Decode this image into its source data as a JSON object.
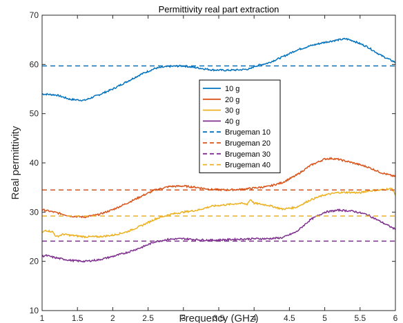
{
  "chart_data": {
    "type": "line",
    "title": "Permittivity real part extraction",
    "xlabel": "Frequency (GHz)",
    "ylabel": "Real permittivity",
    "xlim": [
      1,
      6
    ],
    "ylim": [
      10,
      70
    ],
    "xticks": [
      "1",
      "1.5",
      "2",
      "2.5",
      "3",
      "3.5",
      "4",
      "4.5",
      "5",
      "5.5",
      "6"
    ],
    "yticks": [
      "10",
      "20",
      "30",
      "40",
      "50",
      "60",
      "70"
    ],
    "grid": false,
    "legend_position": "center",
    "series": [
      {
        "name": "10 g",
        "style": "solid",
        "color": "#0072BD",
        "x": [
          1.0,
          1.2,
          1.4,
          1.6,
          1.8,
          2.0,
          2.2,
          2.4,
          2.6,
          2.8,
          3.0,
          3.2,
          3.4,
          3.6,
          3.8,
          3.95,
          4.0,
          4.2,
          4.4,
          4.6,
          4.8,
          5.0,
          5.2,
          5.3,
          5.4,
          5.6,
          5.8,
          6.0
        ],
        "y": [
          54.0,
          53.8,
          52.9,
          52.7,
          53.8,
          55.0,
          56.5,
          58.0,
          59.2,
          59.6,
          59.7,
          59.3,
          58.9,
          58.8,
          58.9,
          59.1,
          59.6,
          60.3,
          61.5,
          62.9,
          63.8,
          64.5,
          65.0,
          65.2,
          64.8,
          63.6,
          61.8,
          60.4
        ]
      },
      {
        "name": "20 g",
        "style": "solid",
        "color": "#D95319",
        "x": [
          1.0,
          1.2,
          1.4,
          1.6,
          1.8,
          2.0,
          2.2,
          2.4,
          2.6,
          2.8,
          3.0,
          3.2,
          3.4,
          3.6,
          3.8,
          4.0,
          4.2,
          4.4,
          4.6,
          4.8,
          5.0,
          5.1,
          5.2,
          5.4,
          5.6,
          5.8,
          6.0
        ],
        "y": [
          30.5,
          29.9,
          29.2,
          29.0,
          29.5,
          30.5,
          31.8,
          33.2,
          34.5,
          35.2,
          35.3,
          35.0,
          34.6,
          34.5,
          34.6,
          34.9,
          35.2,
          36.0,
          37.5,
          39.5,
          40.8,
          40.9,
          40.7,
          40.0,
          39.2,
          38.0,
          37.2
        ]
      },
      {
        "name": "30 g",
        "style": "solid",
        "color": "#EDB120",
        "x": [
          1.0,
          1.05,
          1.15,
          1.2,
          1.3,
          1.4,
          1.6,
          1.8,
          2.0,
          2.2,
          2.4,
          2.6,
          2.8,
          3.0,
          3.2,
          3.4,
          3.6,
          3.8,
          3.9,
          3.95,
          4.0,
          4.2,
          4.4,
          4.6,
          4.8,
          5.0,
          5.2,
          5.4,
          5.5,
          5.6,
          5.8,
          5.9,
          5.95,
          6.0
        ],
        "y": [
          25.8,
          26.3,
          26.0,
          25.0,
          25.5,
          25.3,
          25.0,
          25.0,
          25.3,
          26.0,
          27.2,
          28.6,
          29.5,
          30.0,
          30.4,
          31.2,
          31.5,
          31.8,
          31.6,
          32.6,
          31.8,
          31.4,
          30.6,
          31.0,
          32.5,
          33.5,
          34.0,
          34.0,
          33.9,
          34.3,
          34.5,
          34.7,
          34.8,
          33.5
        ]
      },
      {
        "name": "40 g",
        "style": "solid",
        "color": "#7E2F8E",
        "x": [
          1.0,
          1.05,
          1.2,
          1.4,
          1.6,
          1.8,
          2.0,
          2.2,
          2.4,
          2.6,
          2.8,
          3.0,
          3.2,
          3.4,
          3.6,
          3.8,
          4.0,
          4.2,
          4.4,
          4.6,
          4.8,
          5.0,
          5.2,
          5.4,
          5.6,
          5.8,
          6.0
        ],
        "y": [
          21.0,
          21.2,
          20.7,
          20.2,
          20.0,
          20.3,
          21.0,
          21.8,
          22.8,
          24.0,
          24.5,
          24.6,
          24.4,
          24.3,
          24.4,
          24.5,
          24.6,
          24.6,
          24.8,
          26.0,
          28.5,
          30.0,
          30.4,
          30.2,
          29.5,
          28.0,
          26.5
        ]
      },
      {
        "name": "Brugeman 10",
        "style": "dashed",
        "color": "#0072BD",
        "x": [
          1,
          6
        ],
        "y": [
          59.7,
          59.7
        ]
      },
      {
        "name": "Brugeman 20",
        "style": "dashed",
        "color": "#D95319",
        "x": [
          1,
          6
        ],
        "y": [
          34.5,
          34.5
        ]
      },
      {
        "name": "Brugeman 30",
        "style": "dashed",
        "color": "#7E2F8E",
        "x": [
          1,
          6
        ],
        "y": [
          24.1,
          24.1
        ]
      },
      {
        "name": "Brugeman 40",
        "style": "dashed",
        "color": "#EDB120",
        "x": [
          1,
          6
        ],
        "y": [
          29.2,
          29.2
        ]
      }
    ]
  }
}
